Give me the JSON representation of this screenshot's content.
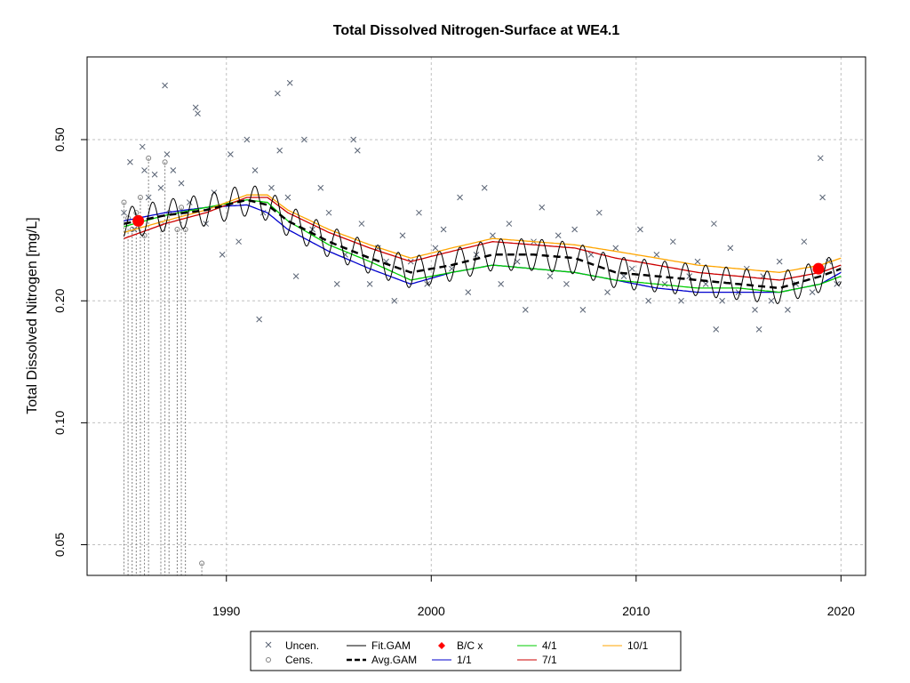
{
  "chart_data": {
    "type": "scatter",
    "title": "Total Dissolved Nitrogen-Surface at WE4.1",
    "xlabel": "",
    "ylabel": "Total Dissolved Nitrogen [mg/L]",
    "y_scale": "log",
    "xlim": [
      1983.2,
      2021.2
    ],
    "ylim": [
      0.042,
      0.8
    ],
    "x_ticks": [
      "1990",
      "2000",
      "2010",
      "2020"
    ],
    "y_ticks": [
      "0.05",
      "0.10",
      "0.20",
      "0.50"
    ],
    "grid": true,
    "colors": {
      "uncen": "#5a6475",
      "cens": "#808080",
      "fit_gam": "#000000",
      "avg_gam": "#000000",
      "bc": "#ff0000",
      "d1_1": "#0000cd",
      "d4_1": "#00cd00",
      "d7_1": "#cd0000",
      "d10_1": "#ffa500",
      "grid": "#c0c0c0"
    },
    "legend": {
      "placement": "bottom",
      "items": [
        "Uncen.",
        "Cens.",
        "Fit.GAM",
        "Avg.GAM",
        "B/C x",
        "1/1",
        "4/1",
        "7/1",
        "10/1"
      ]
    },
    "series": [
      {
        "name": "Avg.GAM",
        "x": [
          1985,
          1987,
          1989,
          1991,
          1992,
          1993,
          1995,
          1997,
          1999,
          2001,
          2003,
          2005,
          2007,
          2009,
          2011,
          2013,
          2015,
          2017,
          2019,
          2020
        ],
        "y": [
          0.31,
          0.325,
          0.335,
          0.355,
          0.345,
          0.315,
          0.28,
          0.255,
          0.235,
          0.245,
          0.26,
          0.26,
          0.255,
          0.235,
          0.23,
          0.225,
          0.22,
          0.215,
          0.23,
          0.24
        ]
      },
      {
        "name": "1/1",
        "x": [
          1985,
          1987,
          1989,
          1991,
          1992,
          1993,
          1995,
          1997,
          1999,
          2001,
          2003,
          2005,
          2007,
          2009,
          2011,
          2013,
          2015,
          2017,
          2019,
          2020
        ],
        "y": [
          0.315,
          0.33,
          0.34,
          0.345,
          0.33,
          0.3,
          0.265,
          0.24,
          0.22,
          0.235,
          0.245,
          0.24,
          0.235,
          0.225,
          0.215,
          0.21,
          0.21,
          0.21,
          0.22,
          0.235
        ]
      },
      {
        "name": "4/1",
        "x": [
          1985,
          1987,
          1989,
          1991,
          1992,
          1993,
          1995,
          1997,
          1999,
          2001,
          2003,
          2005,
          2007,
          2009,
          2011,
          2013,
          2015,
          2017,
          2019,
          2020
        ],
        "y": [
          0.305,
          0.325,
          0.34,
          0.355,
          0.35,
          0.315,
          0.275,
          0.25,
          0.225,
          0.235,
          0.245,
          0.24,
          0.235,
          0.225,
          0.22,
          0.215,
          0.215,
          0.21,
          0.22,
          0.23
        ]
      },
      {
        "name": "7/1",
        "x": [
          1985,
          1987,
          1989,
          1991,
          1992,
          1993,
          1995,
          1997,
          1999,
          2001,
          2003,
          2005,
          2007,
          2009,
          2011,
          2013,
          2015,
          2017,
          2019,
          2020
        ],
        "y": [
          0.285,
          0.31,
          0.33,
          0.36,
          0.36,
          0.33,
          0.295,
          0.27,
          0.25,
          0.265,
          0.28,
          0.275,
          0.27,
          0.255,
          0.245,
          0.235,
          0.23,
          0.225,
          0.235,
          0.245
        ]
      },
      {
        "name": "10/1",
        "x": [
          1985,
          1987,
          1989,
          1991,
          1992,
          1993,
          1995,
          1997,
          1999,
          2001,
          2003,
          2005,
          2007,
          2009,
          2011,
          2013,
          2015,
          2017,
          2019,
          2020
        ],
        "y": [
          0.295,
          0.315,
          0.335,
          0.365,
          0.365,
          0.335,
          0.3,
          0.275,
          0.255,
          0.27,
          0.285,
          0.28,
          0.275,
          0.265,
          0.255,
          0.245,
          0.24,
          0.235,
          0.245,
          0.255
        ]
      }
    ],
    "fit_gam_amplitude": 0.09,
    "bc_points": [
      {
        "x": 1985.7,
        "y": 0.315
      },
      {
        "x": 2018.9,
        "y": 0.24
      }
    ],
    "uncensored_points": {
      "x": [
        1985.0,
        1985.3,
        1985.5,
        1985.9,
        1986.2,
        1986.5,
        1986.8,
        1987.1,
        1987.4,
        1987.8,
        1988.2,
        1988.6,
        1989.0,
        1989.4,
        1989.8,
        1990.2,
        1990.6,
        1991.0,
        1991.4,
        1991.8,
        1992.2,
        1992.6,
        1993.0,
        1993.4,
        1993.8,
        1994.2,
        1994.6,
        1995.0,
        1995.4,
        1995.8,
        1996.2,
        1996.6,
        1997.0,
        1997.4,
        1997.8,
        1998.2,
        1998.6,
        1999.0,
        1999.4,
        1999.8,
        2000.2,
        2000.6,
        2001.0,
        2001.4,
        2001.8,
        2002.2,
        2002.6,
        2003.0,
        2003.4,
        2003.8,
        2004.2,
        2004.6,
        2005.0,
        2005.4,
        2005.8,
        2006.2,
        2006.6,
        2007.0,
        2007.4,
        2007.8,
        2008.2,
        2008.6,
        2009.0,
        2009.4,
        2009.8,
        2010.2,
        2010.6,
        2011.0,
        2011.4,
        2011.8,
        2012.2,
        2012.6,
        2013.0,
        2013.4,
        2013.8,
        2014.2,
        2014.6,
        2015.0,
        2015.4,
        2015.8,
        2016.2,
        2016.6,
        2017.0,
        2017.4,
        2017.8,
        2018.2,
        2018.6,
        2019.0,
        2019.4,
        2019.8,
        1987.0,
        1992.5,
        1993.1,
        1988.5,
        2016.0,
        2013.9,
        2019.1,
        1991.6,
        1996.4,
        1986.0
      ],
      "y": [
        0.33,
        0.44,
        0.3,
        0.48,
        0.36,
        0.41,
        0.38,
        0.46,
        0.42,
        0.39,
        0.35,
        0.58,
        0.31,
        0.37,
        0.26,
        0.46,
        0.28,
        0.5,
        0.42,
        0.33,
        0.38,
        0.47,
        0.36,
        0.23,
        0.5,
        0.3,
        0.38,
        0.33,
        0.22,
        0.26,
        0.5,
        0.31,
        0.22,
        0.27,
        0.25,
        0.2,
        0.29,
        0.25,
        0.33,
        0.22,
        0.27,
        0.3,
        0.24,
        0.36,
        0.21,
        0.26,
        0.38,
        0.29,
        0.22,
        0.31,
        0.25,
        0.19,
        0.28,
        0.34,
        0.23,
        0.29,
        0.22,
        0.3,
        0.19,
        0.26,
        0.33,
        0.21,
        0.27,
        0.23,
        0.24,
        0.3,
        0.2,
        0.26,
        0.22,
        0.28,
        0.2,
        0.23,
        0.25,
        0.22,
        0.31,
        0.2,
        0.27,
        0.21,
        0.24,
        0.19,
        0.23,
        0.2,
        0.25,
        0.19,
        0.22,
        0.28,
        0.21,
        0.45,
        0.25,
        0.22,
        0.68,
        0.65,
        0.69,
        0.6,
        0.17,
        0.17,
        0.36,
        0.18,
        0.47,
        0.42
      ]
    },
    "censored_points": {
      "x": [
        1985.0,
        1985.2,
        1985.4,
        1985.6,
        1985.8,
        1986.0,
        1986.2,
        1986.8,
        1987.0,
        1987.2,
        1987.6,
        1987.8,
        1988.0,
        1988.8
      ],
      "y": [
        0.35,
        0.32,
        0.3,
        0.33,
        0.36,
        0.29,
        0.45,
        0.31,
        0.44,
        0.33,
        0.3,
        0.34,
        0.3,
        0.045
      ]
    }
  }
}
